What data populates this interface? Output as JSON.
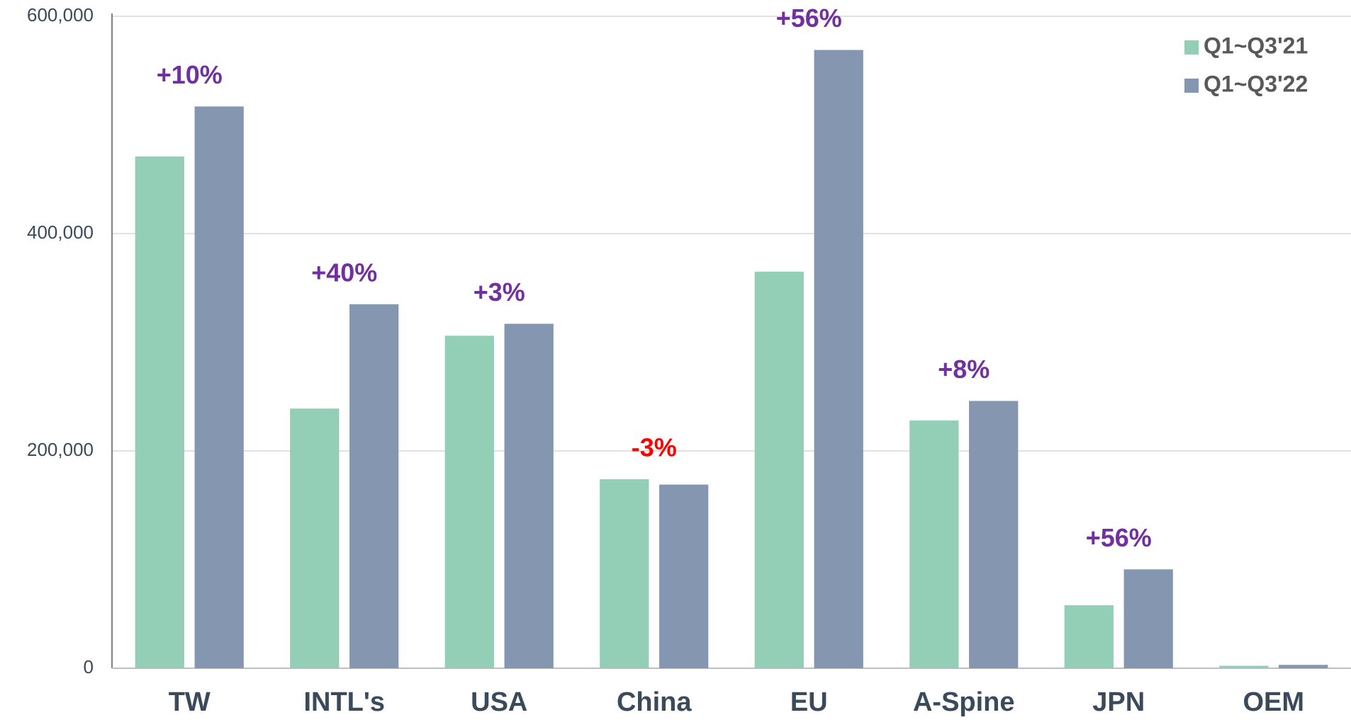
{
  "chart_data": {
    "type": "bar",
    "categories": [
      "TW",
      "INTL's",
      "USA",
      "China",
      "EU",
      "A-Spine",
      "JPN",
      "OEM"
    ],
    "series": [
      {
        "name": "Q1~Q3'21",
        "color": "#93cfb6",
        "values": [
          471000,
          239000,
          306000,
          174000,
          365000,
          228000,
          58000,
          2300
        ]
      },
      {
        "name": "Q1~Q3'22",
        "color": "#8496b0",
        "values": [
          517000,
          335000,
          317000,
          169000,
          569000,
          246000,
          91000,
          3100
        ]
      }
    ],
    "annotations": [
      {
        "text": "+10%",
        "color": "#7030a0"
      },
      {
        "text": "+40%",
        "color": "#7030a0"
      },
      {
        "text": "+3%",
        "color": "#7030a0"
      },
      {
        "text": "-3%",
        "color": "#ff0000"
      },
      {
        "text": "+56%",
        "color": "#7030a0"
      },
      {
        "text": "+8%",
        "color": "#7030a0"
      },
      {
        "text": "+56%",
        "color": "#7030a0"
      },
      {
        "text": "",
        "color": "#7030a0"
      }
    ],
    "ylim": [
      0,
      600000
    ],
    "yticks": [
      0,
      {
        "value": 200000,
        "label": "200,000"
      },
      {
        "value": 400000,
        "label": "400,000"
      },
      {
        "value": 600000,
        "label": "600,000"
      }
    ],
    "grid": true,
    "legend": "top-right"
  }
}
